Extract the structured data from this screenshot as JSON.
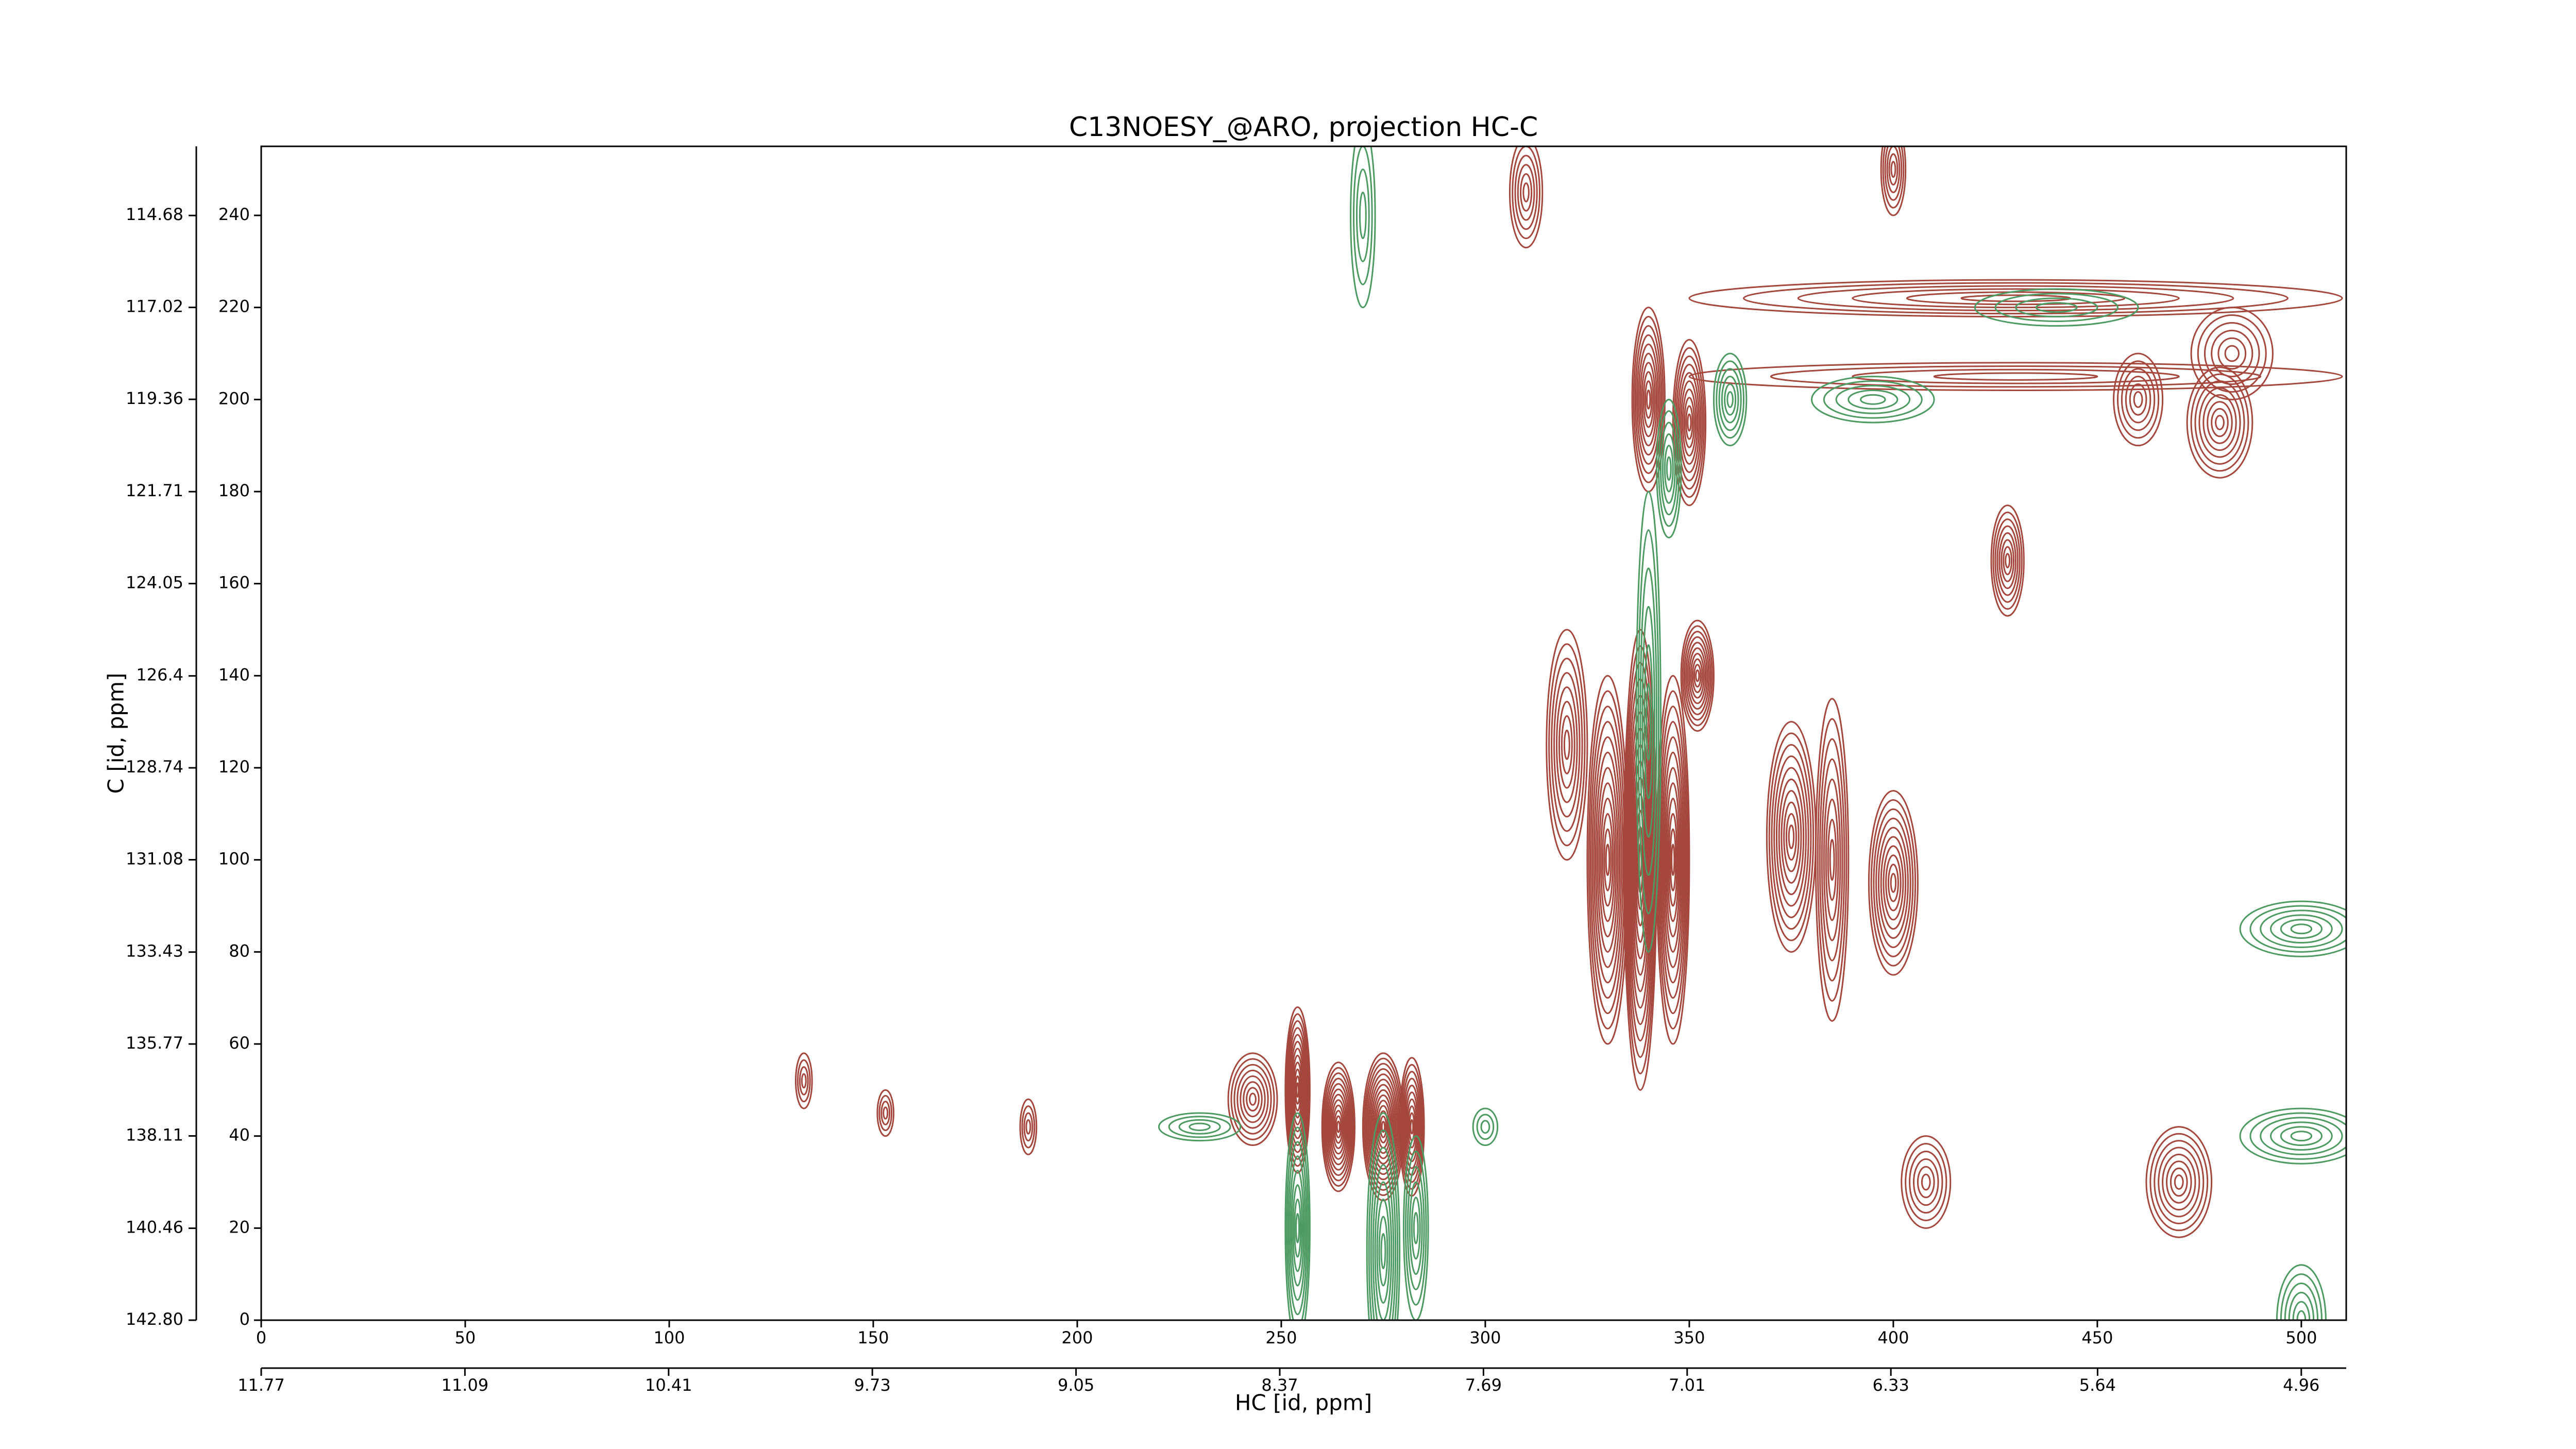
{
  "chart_data": {
    "type": "contour",
    "title": "C13NOESY_@ARO, projection HC-C",
    "xlabel": "HC [id, ppm]",
    "ylabel": "C [id, ppm]",
    "xlim": [
      0,
      511
    ],
    "ylim": [
      0,
      255
    ],
    "xticks": [
      0,
      50,
      100,
      150,
      200,
      250,
      300,
      350,
      400,
      450,
      500
    ],
    "yticks": [
      0,
      20,
      40,
      60,
      80,
      100,
      120,
      140,
      160,
      180,
      200,
      220,
      240
    ],
    "x2lim": [
      11.77,
      4.81
    ],
    "x2ticks": [
      11.77,
      11.09,
      10.41,
      9.73,
      9.05,
      8.37,
      7.69,
      7.01,
      6.33,
      5.64,
      4.96
    ],
    "y2lim": [
      142.8,
      112.92
    ],
    "y2ticks": [
      {
        "value": 142.8,
        "label": "142.80"
      },
      140.46,
      138.11,
      135.77,
      133.43,
      131.08,
      128.74,
      126.4,
      124.05,
      121.71,
      119.36,
      117.02,
      114.68
    ],
    "series": [
      {
        "color": "#a5473d",
        "x": [
          243,
          254,
          264,
          275,
          282,
          133,
          153,
          188,
          330,
          320,
          338,
          346,
          352,
          340,
          350,
          375,
          385,
          400,
          428,
          310,
          400,
          480,
          483,
          470,
          408,
          460,
          430,
          430
        ],
        "y": [
          48,
          50,
          42,
          42,
          42,
          52,
          45,
          42,
          100,
          125,
          100,
          100,
          140,
          200,
          195,
          105,
          100,
          95,
          165,
          245,
          250,
          195,
          210,
          30,
          30,
          200,
          222,
          205
        ],
        "rx": [
          6,
          3,
          4,
          5,
          3,
          2,
          2,
          2,
          5,
          5,
          4,
          4,
          4,
          4,
          4,
          6,
          4,
          6,
          4,
          4,
          3,
          8,
          10,
          8,
          6,
          6,
          80,
          80
        ],
        "ry": [
          10,
          18,
          14,
          16,
          15,
          6,
          5,
          6,
          40,
          25,
          50,
          40,
          12,
          20,
          18,
          25,
          35,
          20,
          12,
          12,
          10,
          12,
          10,
          12,
          10,
          10,
          4,
          3
        ],
        "levels": [
          8,
          12,
          12,
          14,
          10,
          4,
          4,
          4,
          12,
          8,
          14,
          12,
          10,
          10,
          10,
          10,
          8,
          10,
          8,
          6,
          6,
          8,
          6,
          8,
          6,
          6,
          6,
          4
        ]
      },
      {
        "color": "#4d9a63",
        "x": [
          254,
          275,
          283,
          340,
          345,
          360,
          395,
          270,
          300,
          230,
          500,
          500,
          440,
          500
        ],
        "y": [
          20,
          15,
          20,
          130,
          185,
          200,
          200,
          240,
          42,
          42,
          40,
          85,
          220,
          0
        ],
        "rx": [
          3,
          4,
          3,
          3,
          3,
          4,
          15,
          3,
          3,
          10,
          15,
          15,
          20,
          6
        ],
        "ry": [
          25,
          30,
          20,
          50,
          15,
          10,
          5,
          20,
          4,
          3,
          6,
          6,
          4,
          12
        ],
        "levels": [
          8,
          8,
          6,
          6,
          6,
          6,
          5,
          4,
          3,
          4,
          6,
          6,
          4,
          6
        ]
      }
    ]
  }
}
